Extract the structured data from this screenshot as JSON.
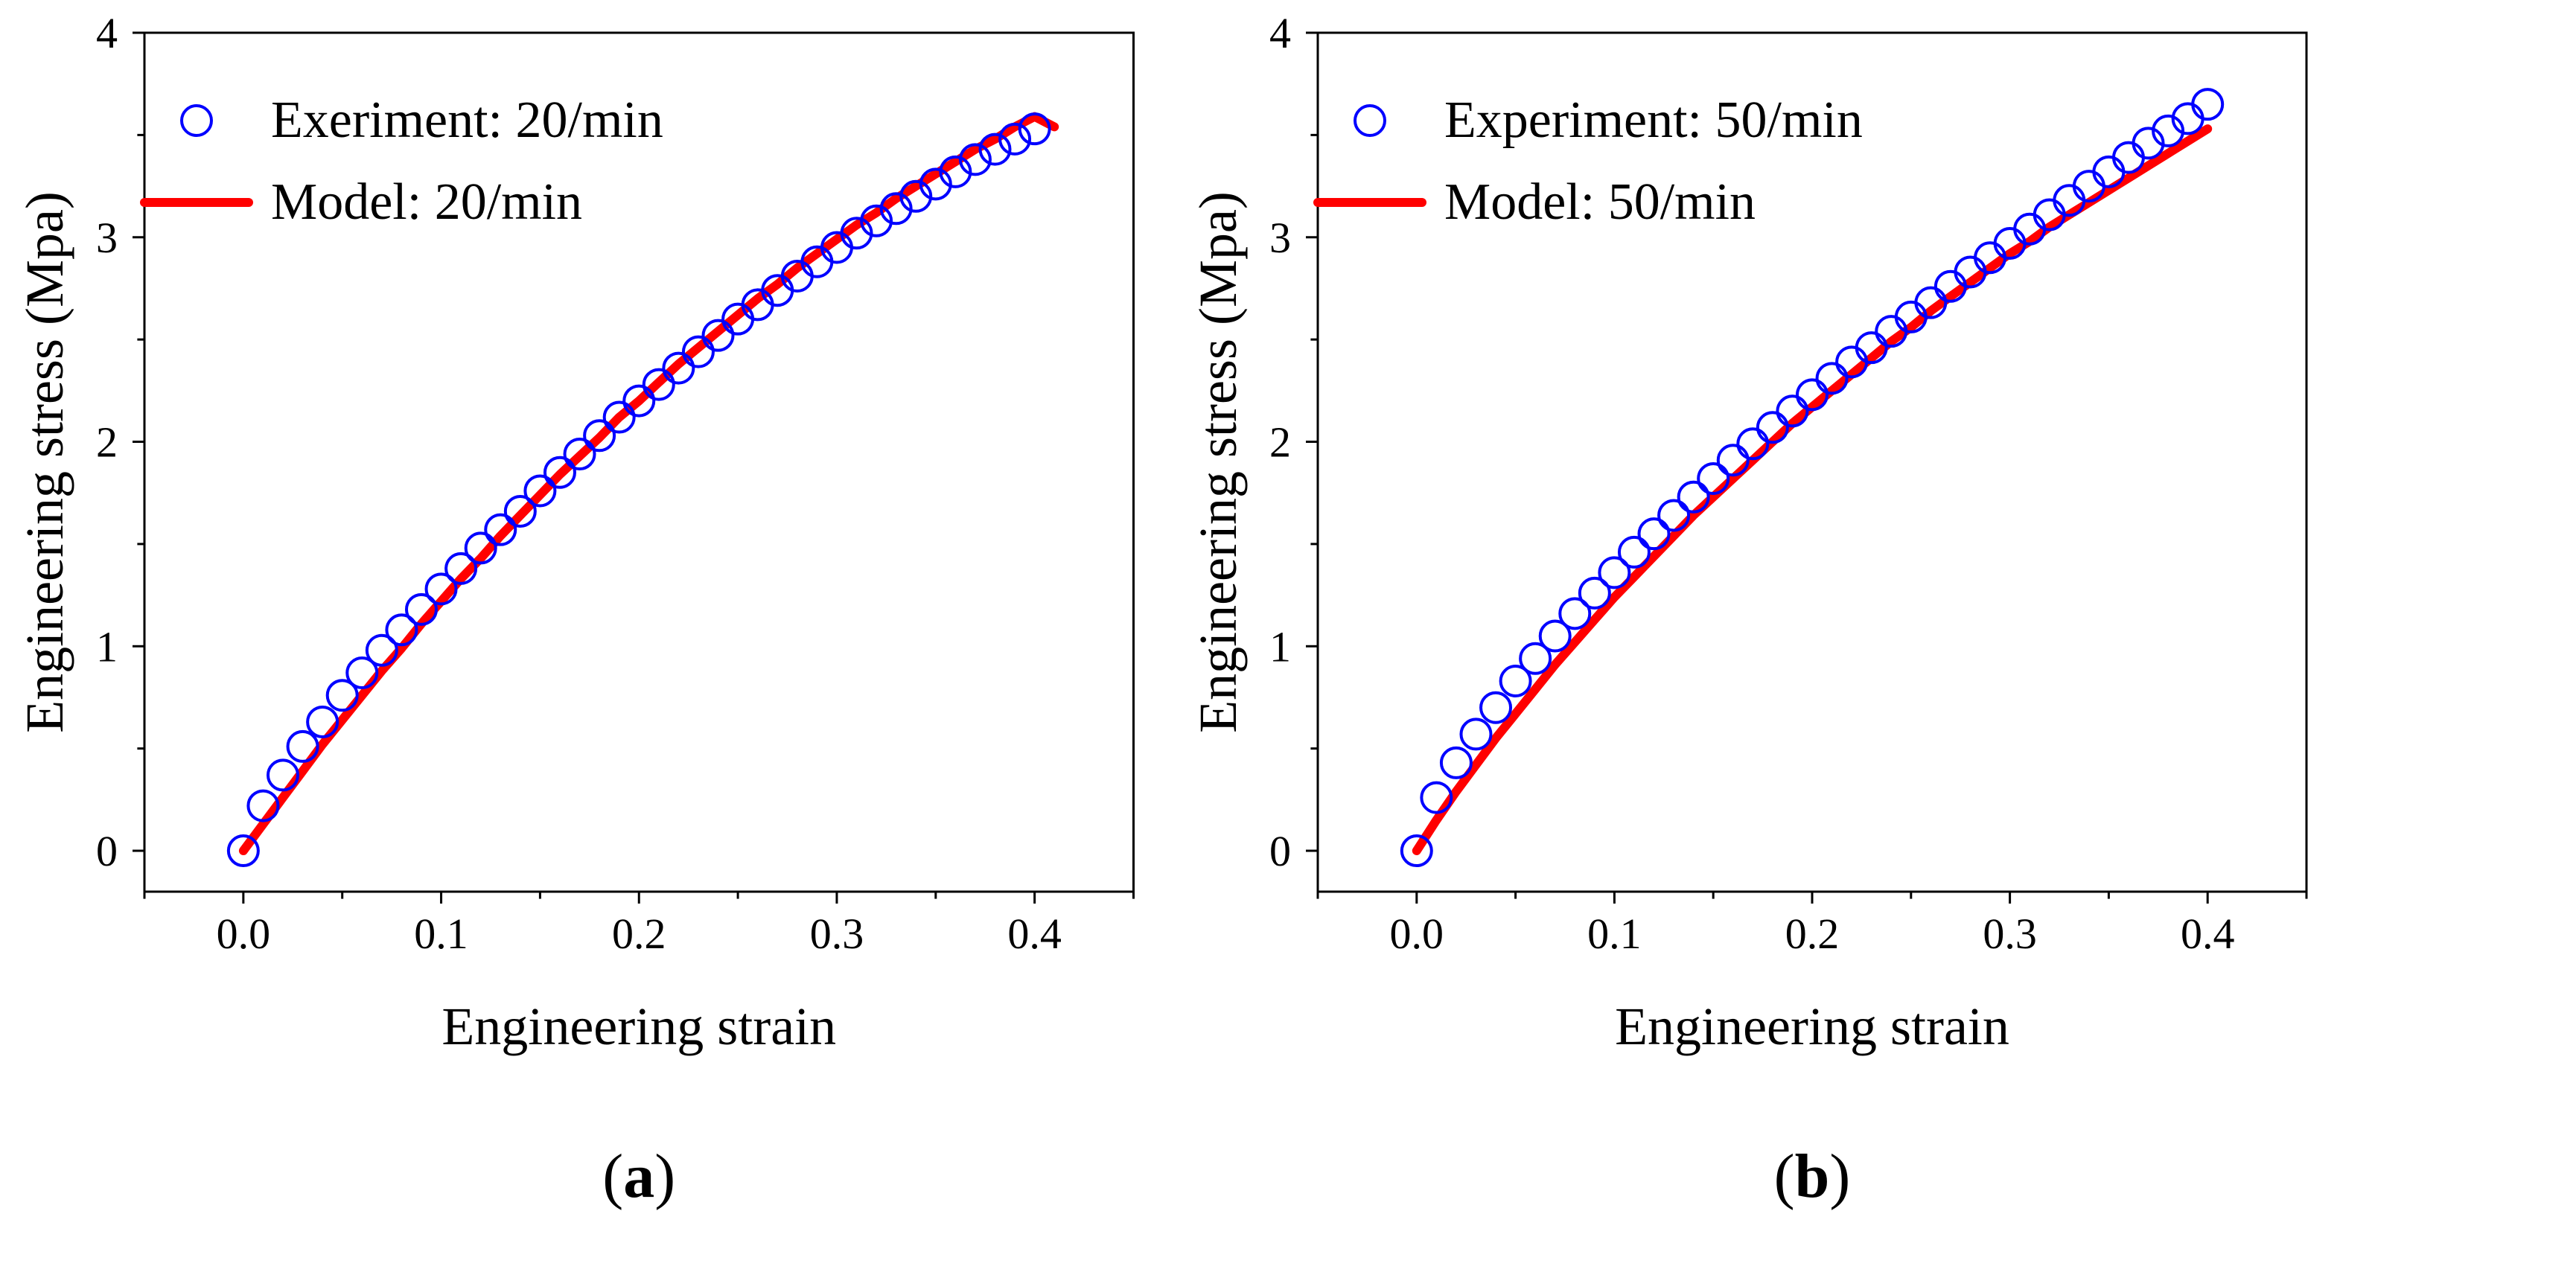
{
  "figure": {
    "panel_count": 2
  },
  "chart_data": [
    {
      "type": "scatter",
      "panel_label": "a",
      "title": "",
      "xlabel": "Engineering strain",
      "ylabel": "Engineering stress (Mpa)",
      "xlim": [
        -0.05,
        0.45
      ],
      "ylim": [
        -0.2,
        4.0
      ],
      "xticks": [
        "0.0",
        "0.1",
        "0.2",
        "0.3",
        "0.4"
      ],
      "yticks": [
        "0",
        "1",
        "2",
        "3",
        "4"
      ],
      "xtick_values": [
        0.0,
        0.1,
        0.2,
        0.3,
        0.4
      ],
      "ytick_values": [
        0,
        1,
        2,
        3,
        4
      ],
      "grid": false,
      "legend_position": "top-left",
      "series": [
        {
          "name": "Exeriment: 20/min",
          "kind": "scatter",
          "marker": "open-circle",
          "color": "#0000ff",
          "x": [
            0.0,
            0.01,
            0.02,
            0.03,
            0.04,
            0.05,
            0.06,
            0.07,
            0.08,
            0.09,
            0.1,
            0.11,
            0.12,
            0.13,
            0.14,
            0.15,
            0.16,
            0.17,
            0.18,
            0.19,
            0.2,
            0.21,
            0.22,
            0.23,
            0.24,
            0.25,
            0.26,
            0.27,
            0.28,
            0.29,
            0.3,
            0.31,
            0.32,
            0.33,
            0.34,
            0.35,
            0.36,
            0.37,
            0.38,
            0.39,
            0.4
          ],
          "y": [
            0.0,
            0.22,
            0.37,
            0.51,
            0.63,
            0.76,
            0.87,
            0.98,
            1.08,
            1.18,
            1.28,
            1.38,
            1.48,
            1.57,
            1.66,
            1.76,
            1.85,
            1.94,
            2.03,
            2.12,
            2.2,
            2.28,
            2.36,
            2.44,
            2.52,
            2.6,
            2.67,
            2.74,
            2.81,
            2.88,
            2.95,
            3.02,
            3.08,
            3.14,
            3.2,
            3.26,
            3.32,
            3.38,
            3.43,
            3.48,
            3.53
          ]
        },
        {
          "name": "Model: 20/min",
          "kind": "line",
          "color": "#ff0000",
          "x": [
            0.0,
            0.01,
            0.02,
            0.03,
            0.04,
            0.05,
            0.06,
            0.07,
            0.08,
            0.09,
            0.1,
            0.11,
            0.12,
            0.13,
            0.14,
            0.15,
            0.16,
            0.17,
            0.18,
            0.19,
            0.2,
            0.21,
            0.22,
            0.23,
            0.24,
            0.25,
            0.26,
            0.27,
            0.28,
            0.29,
            0.3,
            0.31,
            0.32,
            0.33,
            0.34,
            0.35,
            0.36,
            0.37,
            0.38,
            0.39,
            0.4,
            0.41
          ],
          "y": [
            0.0,
            0.13,
            0.26,
            0.39,
            0.52,
            0.64,
            0.76,
            0.88,
            0.99,
            1.11,
            1.22,
            1.33,
            1.43,
            1.54,
            1.64,
            1.74,
            1.84,
            1.93,
            2.02,
            2.12,
            2.2,
            2.29,
            2.38,
            2.46,
            2.54,
            2.62,
            2.7,
            2.77,
            2.85,
            2.92,
            2.99,
            3.06,
            3.12,
            3.19,
            3.25,
            3.31,
            3.37,
            3.43,
            3.48,
            3.54,
            3.59,
            3.54
          ]
        }
      ]
    },
    {
      "type": "scatter",
      "panel_label": "b",
      "title": "",
      "xlabel": "Engineering strain",
      "ylabel": "Engineering stress (Mpa)",
      "xlim": [
        -0.05,
        0.45
      ],
      "ylim": [
        -0.2,
        4.0
      ],
      "xticks": [
        "0.0",
        "0.1",
        "0.2",
        "0.3",
        "0.4"
      ],
      "yticks": [
        "0",
        "1",
        "2",
        "3",
        "4"
      ],
      "xtick_values": [
        0.0,
        0.1,
        0.2,
        0.3,
        0.4
      ],
      "ytick_values": [
        0,
        1,
        2,
        3,
        4
      ],
      "grid": false,
      "legend_position": "top-left",
      "series": [
        {
          "name": "Experiment: 50/min",
          "kind": "scatter",
          "marker": "open-circle",
          "color": "#0000ff",
          "x": [
            0.0,
            0.01,
            0.02,
            0.03,
            0.04,
            0.05,
            0.06,
            0.07,
            0.08,
            0.09,
            0.1,
            0.11,
            0.12,
            0.13,
            0.14,
            0.15,
            0.16,
            0.17,
            0.18,
            0.19,
            0.2,
            0.21,
            0.22,
            0.23,
            0.24,
            0.25,
            0.26,
            0.27,
            0.28,
            0.29,
            0.3,
            0.31,
            0.32,
            0.33,
            0.34,
            0.35,
            0.36,
            0.37,
            0.38,
            0.39,
            0.4
          ],
          "y": [
            0.0,
            0.26,
            0.43,
            0.57,
            0.7,
            0.83,
            0.94,
            1.05,
            1.16,
            1.26,
            1.36,
            1.46,
            1.55,
            1.64,
            1.73,
            1.82,
            1.91,
            1.99,
            2.07,
            2.15,
            2.23,
            2.31,
            2.39,
            2.46,
            2.54,
            2.61,
            2.68,
            2.76,
            2.83,
            2.9,
            2.97,
            3.04,
            3.11,
            3.18,
            3.25,
            3.32,
            3.39,
            3.46,
            3.52,
            3.58,
            3.65
          ]
        },
        {
          "name": "Model: 50/min",
          "kind": "line",
          "color": "#ff0000",
          "x": [
            0.0,
            0.01,
            0.02,
            0.03,
            0.04,
            0.05,
            0.06,
            0.07,
            0.08,
            0.09,
            0.1,
            0.11,
            0.12,
            0.13,
            0.14,
            0.15,
            0.16,
            0.17,
            0.18,
            0.19,
            0.2,
            0.21,
            0.22,
            0.23,
            0.24,
            0.25,
            0.26,
            0.27,
            0.28,
            0.29,
            0.3,
            0.31,
            0.32,
            0.33,
            0.34,
            0.35,
            0.36,
            0.37,
            0.38,
            0.39,
            0.4
          ],
          "y": [
            0.0,
            0.15,
            0.29,
            0.42,
            0.55,
            0.67,
            0.79,
            0.91,
            1.02,
            1.13,
            1.24,
            1.34,
            1.44,
            1.54,
            1.64,
            1.73,
            1.82,
            1.91,
            2.0,
            2.09,
            2.17,
            2.25,
            2.33,
            2.41,
            2.49,
            2.56,
            2.64,
            2.71,
            2.78,
            2.85,
            2.92,
            2.98,
            3.05,
            3.11,
            3.17,
            3.23,
            3.29,
            3.35,
            3.41,
            3.47,
            3.53
          ]
        }
      ]
    }
  ]
}
